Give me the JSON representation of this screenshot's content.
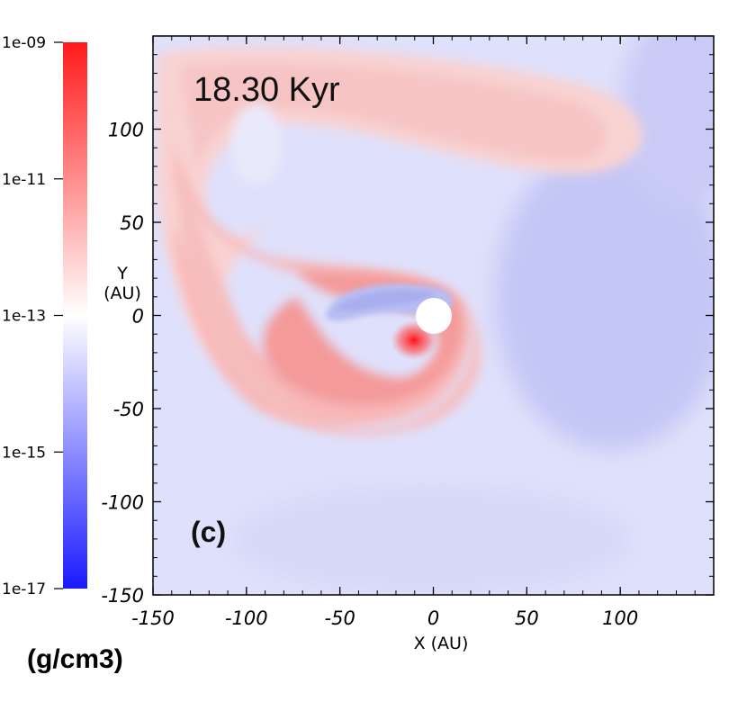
{
  "chart_data": {
    "type": "heatmap",
    "time_label": "18.30 Kyr",
    "panel_label": "(c)",
    "xlabel": "X (AU)",
    "ylabel_top": "Y",
    "ylabel_bottom": "(AU)",
    "xlim": [
      -150,
      150
    ],
    "ylim": [
      -150,
      150
    ],
    "x_ticks": [
      -150,
      -100,
      -50,
      0,
      50,
      100
    ],
    "x_tick_labels": [
      "-150",
      "-100",
      "-50",
      "0",
      "50",
      "100"
    ],
    "y_ticks": [
      100,
      50,
      0,
      -50,
      -100,
      -150
    ],
    "y_tick_labels": [
      "100",
      "50",
      "0",
      "-50",
      "-100",
      "-150"
    ],
    "colorbar": {
      "unit": "(g/cm3)",
      "scale": "log",
      "range": [
        1e-17,
        1e-09
      ],
      "labels": [
        "1e-09",
        "1e-11",
        "1e-13",
        "1e-15",
        "1e-17"
      ],
      "colors": {
        "high": "#ff1a1a",
        "mid": "#ffffff",
        "low": "#1a1aff"
      }
    },
    "features": {
      "sink_particle": {
        "x": 0,
        "y": 0,
        "radius_au": 10,
        "color": "#ffffff"
      },
      "density_peak": {
        "x": -12,
        "y": -13,
        "color": "#ff2020"
      }
    },
    "background_color": "#dfe0fb",
    "low_density_color": "#b9bdf3"
  }
}
